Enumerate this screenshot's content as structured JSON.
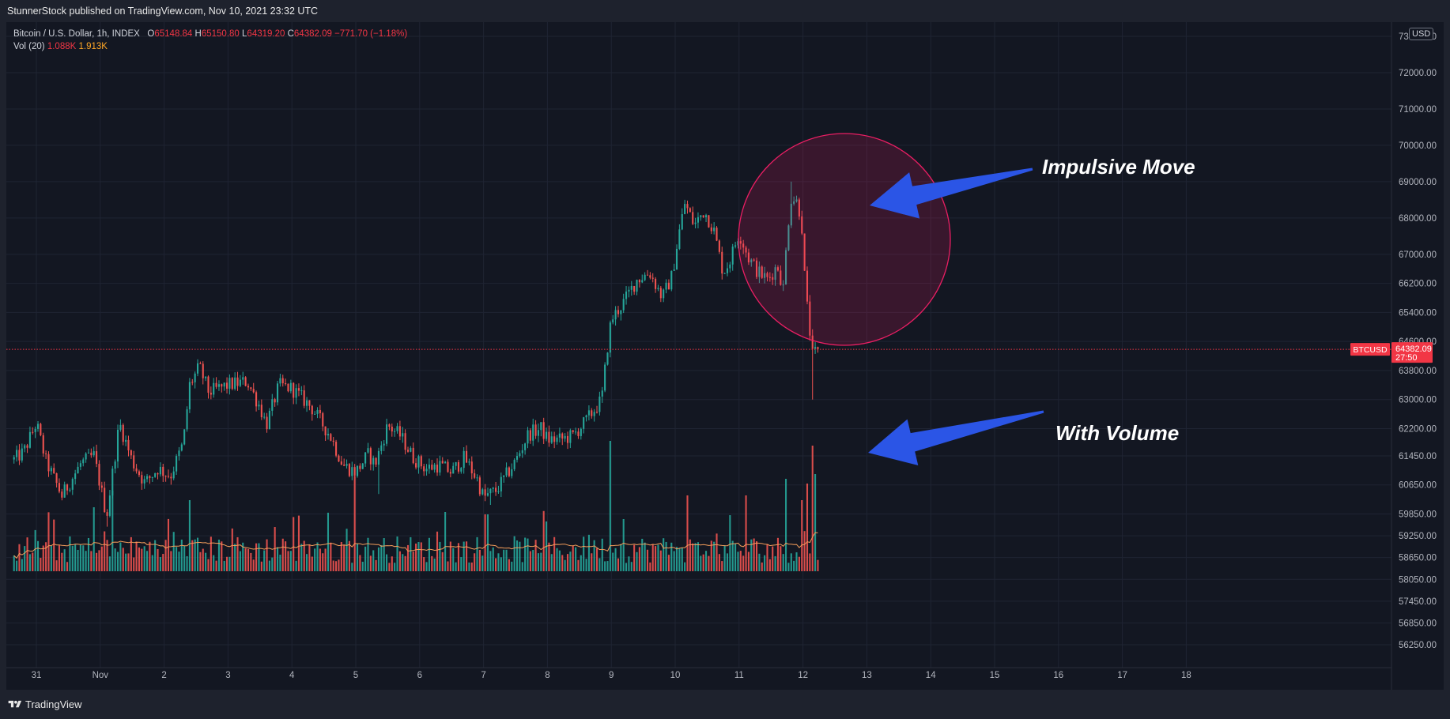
{
  "header": {
    "publish_text": "StunnerStock published on TradingView.com, Nov 10, 2021 23:32 UTC"
  },
  "legend": {
    "symbol_desc": "Bitcoin / U.S. Dollar, 1h, INDEX",
    "open_label": "O",
    "open": "65148.84",
    "high_label": "H",
    "high": "65150.80",
    "low_label": "L",
    "low": "64319.20",
    "close_label": "C",
    "close": "64382.09",
    "change": "−771.70 (−1.18%)",
    "vol_label": "Vol (20)",
    "vol_value": "1.088K",
    "vol_ma": "1.913K"
  },
  "currency": "USD",
  "footer": {
    "brand": "TradingView"
  },
  "colors": {
    "background": "#131722",
    "frame": "#1e222d",
    "up": "#26a69a",
    "down": "#ef5350",
    "ma": "#f59e5b",
    "circle": "#e91e63",
    "arrow": "#2b55e6",
    "price_line": "#f23645"
  },
  "chart_data": {
    "type": "candlestick",
    "price_axis": {
      "ticks": [
        73000,
        72000,
        71000,
        70000,
        69000,
        68000,
        67000,
        66200,
        65400,
        64600,
        63800,
        63000,
        62200,
        61450,
        60650,
        59850,
        59250,
        58650,
        58050,
        57450,
        56850,
        56250
      ],
      "tick_labels": [
        "73000.00",
        "72000.00",
        "71000.00",
        "70000.00",
        "69000.00",
        "68000.00",
        "67000.00",
        "66200.00",
        "65400.00",
        "64600.00",
        "63800.00",
        "63000.00",
        "62200.00",
        "61450.00",
        "60650.00",
        "59850.00",
        "59250.00",
        "58650.00",
        "58050.00",
        "57450.00",
        "56850.00",
        "56250.00"
      ]
    },
    "time_axis": {
      "ticks": [
        "31",
        "Nov",
        "2",
        "3",
        "4",
        "5",
        "6",
        "7",
        "8",
        "9",
        "10",
        "11",
        "12",
        "13",
        "14",
        "15",
        "16",
        "17",
        "18"
      ],
      "first_tick_offset_days": -1,
      "data_start_offset_days": -1.35,
      "bar_interval_hours": 1
    },
    "price_range": [
      55800,
      73400
    ],
    "current_price": {
      "symbol": "BTCUSD",
      "value": 64382.09,
      "value_label": "64382.09",
      "countdown": "27:50"
    },
    "key_prices": {
      "open_price": 61350,
      "path": [
        [
          -1.35,
          61350
        ],
        [
          -1.2,
          61550
        ],
        [
          -1.0,
          62350
        ],
        [
          -0.85,
          61300
        ],
        [
          -0.6,
          60350
        ],
        [
          -0.3,
          61250
        ],
        [
          -0.1,
          61450
        ],
        [
          0.1,
          59800
        ],
        [
          0.3,
          62350
        ],
        [
          0.5,
          61300
        ],
        [
          0.7,
          60700
        ],
        [
          0.9,
          61100
        ],
        [
          1.1,
          60900
        ],
        [
          1.3,
          61800
        ],
        [
          1.4,
          63400
        ],
        [
          1.55,
          63900
        ],
        [
          1.7,
          63200
        ],
        [
          2.0,
          63400
        ],
        [
          2.3,
          63500
        ],
        [
          2.5,
          62800
        ],
        [
          2.6,
          62300
        ],
        [
          2.8,
          63400
        ],
        [
          3.0,
          63300
        ],
        [
          3.3,
          62800
        ],
        [
          3.6,
          62000
        ],
        [
          3.8,
          61200
        ],
        [
          4.0,
          61000
        ],
        [
          4.2,
          61500
        ],
        [
          4.3,
          61200
        ],
        [
          4.5,
          62300
        ],
        [
          4.7,
          62000
        ],
        [
          4.9,
          61400
        ],
        [
          5.1,
          61100
        ],
        [
          5.3,
          61200
        ],
        [
          5.5,
          61000
        ],
        [
          5.7,
          61400
        ],
        [
          5.9,
          60800
        ],
        [
          6.0,
          60300
        ],
        [
          6.2,
          60500
        ],
        [
          6.5,
          61300
        ],
        [
          6.7,
          62050
        ],
        [
          6.9,
          62200
        ],
        [
          7.0,
          61900
        ],
        [
          7.2,
          61900
        ],
        [
          7.4,
          62000
        ],
        [
          7.6,
          62400
        ],
        [
          7.85,
          63000
        ],
        [
          7.95,
          64600
        ],
        [
          8.0,
          65200
        ],
        [
          8.2,
          65700
        ],
        [
          8.4,
          66300
        ],
        [
          8.6,
          66500
        ],
        [
          8.8,
          65800
        ],
        [
          8.95,
          66400
        ],
        [
          9.05,
          67500
        ],
        [
          9.15,
          68400
        ],
        [
          9.3,
          67800
        ],
        [
          9.45,
          68200
        ],
        [
          9.6,
          67700
        ],
        [
          9.75,
          66500
        ],
        [
          9.85,
          66800
        ],
        [
          10.0,
          67600
        ],
        [
          10.15,
          66900
        ],
        [
          10.3,
          66500
        ],
        [
          10.45,
          66300
        ],
        [
          10.6,
          66700
        ],
        [
          10.7,
          66000
        ],
        [
          10.75,
          67600
        ],
        [
          10.82,
          68600
        ],
        [
          10.92,
          68400
        ],
        [
          10.98,
          67900
        ],
        [
          11.0,
          67000
        ],
        [
          11.05,
          65800
        ],
        [
          11.1,
          65000
        ],
        [
          11.15,
          64200
        ],
        [
          11.25,
          64382
        ]
      ],
      "wicks": [
        {
          "day": 4.35,
          "price": 60400
        },
        {
          "day": 11.15,
          "price": 63000
        },
        {
          "day": 10.82,
          "price": 69000
        },
        {
          "day": 9.15,
          "price": 68500
        },
        {
          "day": 1.6,
          "price": 64050
        },
        {
          "day": 0.1,
          "price": 59500
        },
        {
          "day": 6.1,
          "price": 60100
        }
      ]
    },
    "volume": {
      "base_level": 1.0,
      "ma_base": 1.2,
      "spikes": [
        {
          "day": 8.0,
          "rel": 5.5
        },
        {
          "day": 4.0,
          "rel": 4.0
        },
        {
          "day": 11.15,
          "rel": 5.3
        },
        {
          "day": 11.05,
          "rel": 3.7
        },
        {
          "day": 11.0,
          "rel": 3.0
        },
        {
          "day": 10.75,
          "rel": 3.9
        },
        {
          "day": 11.2,
          "rel": 4.1
        },
        {
          "day": 0.2,
          "rel": 3.4
        },
        {
          "day": 1.4,
          "rel": 3.0
        },
        {
          "day": 9.2,
          "rel": 3.2
        },
        {
          "day": 10.1,
          "rel": 3.2
        },
        {
          "day": 7.0,
          "rel": 2.1
        },
        {
          "day": 6.05,
          "rel": 2.4
        },
        {
          "day": -0.1,
          "rel": 2.7
        },
        {
          "day": 8.2,
          "rel": 2.2
        },
        {
          "day": 5.4,
          "rel": 2.5
        }
      ]
    }
  },
  "annotations": {
    "impulsive_move": "Impulsive Move",
    "with_volume": "With Volume"
  }
}
